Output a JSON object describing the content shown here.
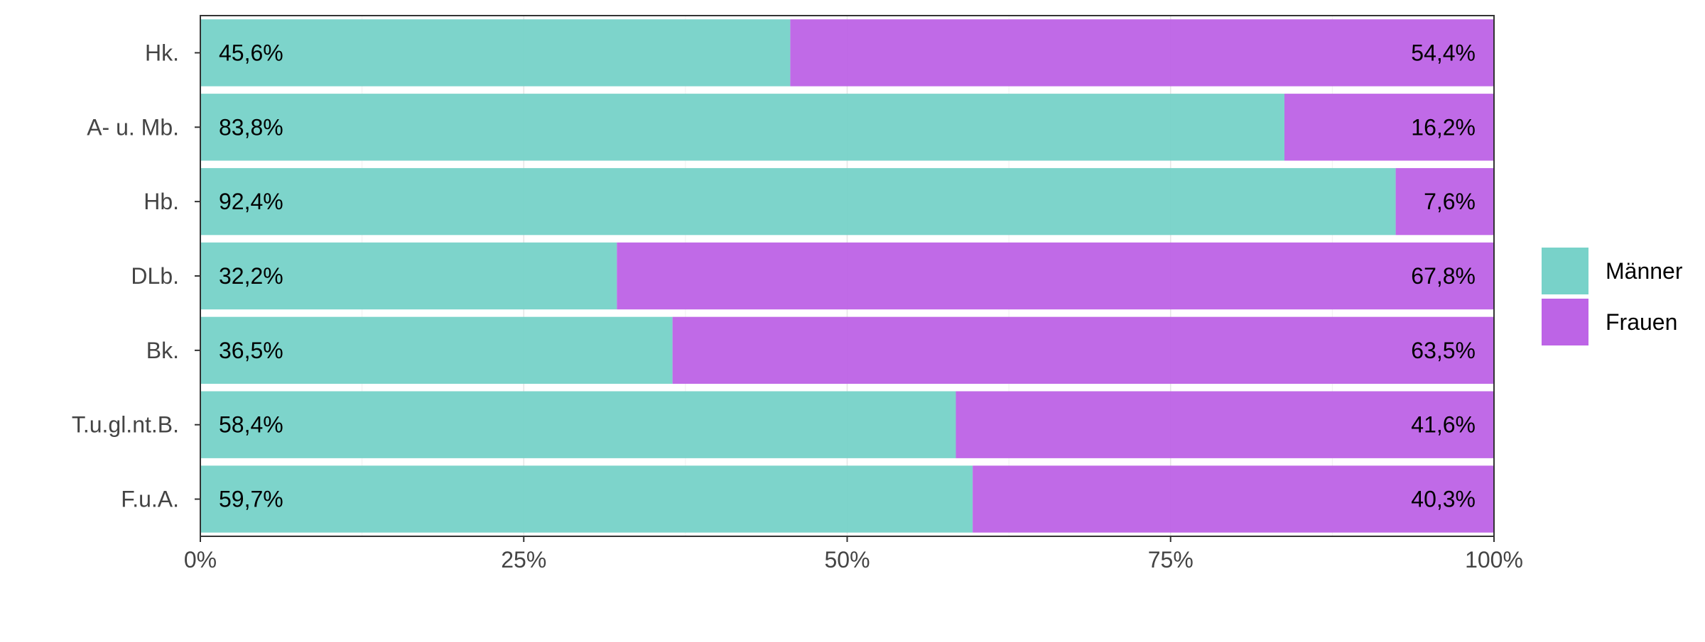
{
  "chart_data": {
    "type": "bar",
    "orientation": "horizontal",
    "stacked": true,
    "categories": [
      "Hk.",
      "A- u. Mb.",
      "Hb.",
      "DLb.",
      "Bk.",
      "T.u.gl.nt.B.",
      "F.u.A."
    ],
    "series": [
      {
        "name": "Männer",
        "color": "#78d2c9",
        "values": [
          45.6,
          83.8,
          92.4,
          32.2,
          36.5,
          58.4,
          59.7
        ],
        "labels": [
          "45,6%",
          "83,8%",
          "92,4%",
          "32,2%",
          "36,5%",
          "58,4%",
          "59,7%"
        ]
      },
      {
        "name": "Frauen",
        "color": "#bd64e6",
        "values": [
          54.4,
          16.2,
          7.6,
          67.8,
          63.5,
          41.6,
          40.3
        ],
        "labels": [
          "54,4%",
          "16,2%",
          "7,6%",
          "67,8%",
          "63,5%",
          "41,6%",
          "40,3%"
        ]
      }
    ],
    "xlim": [
      0,
      100
    ],
    "x_ticks": [
      0,
      25,
      50,
      75,
      100
    ],
    "x_tick_labels": [
      "0%",
      "25%",
      "50%",
      "75%",
      "100%"
    ],
    "grid": true,
    "legend_position": "right",
    "title": "",
    "xlabel": "",
    "ylabel": ""
  }
}
